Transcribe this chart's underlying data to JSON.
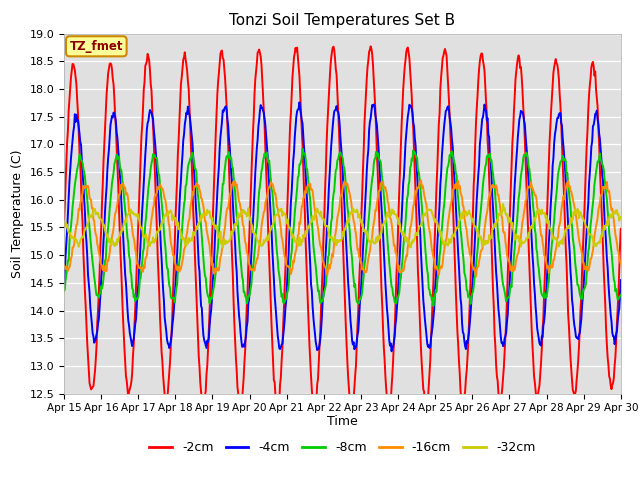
{
  "title": "Tonzi Soil Temperatures Set B",
  "xlabel": "Time",
  "ylabel": "Soil Temperature (C)",
  "ylim": [
    12.5,
    19.0
  ],
  "yticks": [
    12.5,
    13.0,
    13.5,
    14.0,
    14.5,
    15.0,
    15.5,
    16.0,
    16.5,
    17.0,
    17.5,
    18.0,
    18.5,
    19.0
  ],
  "series_colors": [
    "#ff0000",
    "#0000ff",
    "#00cc00",
    "#ff8c00",
    "#cccc00"
  ],
  "series_labels": [
    "-2cm",
    "-4cm",
    "-8cm",
    "-16cm",
    "-32cm"
  ],
  "fig_bg": "#ffffff",
  "plot_bg": "#e0e0e0",
  "annotation_text": "TZ_fmet",
  "annotation_bg": "#ffff99",
  "annotation_border": "#cc8800",
  "base_temp": 15.5,
  "amplitudes": [
    2.9,
    2.0,
    1.25,
    0.75,
    0.28
  ],
  "phase_shifts_hours": [
    0.0,
    2.0,
    4.5,
    8.0,
    14.0
  ],
  "period_hours": 24,
  "line_width": 1.4,
  "n_points": 720
}
